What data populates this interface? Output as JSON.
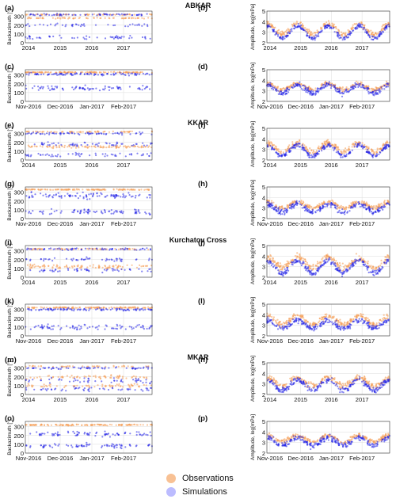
{
  "sections": [
    "ABKAR",
    "KKAR",
    "Kurchatov Cross",
    "MKAR"
  ],
  "panel_labels": [
    "(a)",
    "(b)",
    "(c)",
    "(d)",
    "(e)",
    "(f)",
    "(g)",
    "(h)",
    "(i)",
    "(j)",
    "(k)",
    "(l)",
    "(m)",
    "(n)",
    "(o)",
    "(p)"
  ],
  "legend": {
    "observations": "Observations",
    "simulations": "Simulations",
    "observations_color": "#f5a766",
    "simulations_color": "#6b6bff"
  },
  "colors": {
    "obs": "#f5a05a",
    "sim": "#2020e6",
    "grid": "#dddddd"
  },
  "chart_data": [
    {
      "type": "scatter",
      "panel": "(a)",
      "station": "ABKAR",
      "ylabel": "Backazimuth [°]",
      "xticks": [
        "2014",
        "2015",
        "2016",
        "2017"
      ],
      "yticks": [
        0,
        100,
        200,
        300
      ],
      "ylim": [
        0,
        360
      ],
      "series": [
        {
          "name": "Observations",
          "values": [
            {
              "level": 320,
              "spread": 10
            },
            {
              "level": 280,
              "spread": 8
            }
          ]
        },
        {
          "name": "Simulations",
          "values": [
            {
              "level": 320,
              "spread": 15
            },
            {
              "level": 200,
              "spread": 25
            },
            {
              "level": 60,
              "spread": 30
            }
          ]
        }
      ]
    },
    {
      "type": "scatter",
      "panel": "(b)",
      "station": "ABKAR",
      "ylabel": "Amplitude, log[mPa]",
      "xticks": [
        "2014",
        "2015",
        "2016",
        "2017"
      ],
      "yticks": [
        2,
        3,
        4,
        5
      ],
      "ylim": [
        2,
        5
      ],
      "series": [
        {
          "name": "Observations",
          "values": [
            {
              "mean": 3.3,
              "amp": 0.5,
              "spread": 0.4
            }
          ]
        },
        {
          "name": "Simulations",
          "values": [
            {
              "mean": 3.0,
              "amp": 0.6,
              "spread": 0.3
            }
          ]
        }
      ]
    },
    {
      "type": "scatter",
      "panel": "(c)",
      "station": "ABKAR",
      "ylabel": "Backazimuth [°]",
      "xticks": [
        "Nov-2016",
        "Dec-2016",
        "Jan-2017",
        "Feb-2017"
      ],
      "yticks": [
        0,
        100,
        200,
        300
      ],
      "ylim": [
        0,
        360
      ],
      "series": [
        {
          "name": "Observations",
          "values": [
            {
              "level": 330,
              "spread": 8
            }
          ]
        },
        {
          "name": "Simulations",
          "values": [
            {
              "level": 310,
              "spread": 20
            },
            {
              "level": 150,
              "spread": 40
            }
          ]
        }
      ]
    },
    {
      "type": "scatter",
      "panel": "(d)",
      "station": "ABKAR",
      "ylabel": "Amplitude, log[mPa]",
      "xticks": [
        "Nov-2016",
        "Dec-2016",
        "Jan-2017",
        "Feb-2017"
      ],
      "yticks": [
        2,
        3,
        4,
        5
      ],
      "ylim": [
        2,
        5
      ],
      "series": [
        {
          "name": "Observations",
          "values": [
            {
              "mean": 3.4,
              "amp": 0.3,
              "spread": 0.3
            }
          ]
        },
        {
          "name": "Simulations",
          "values": [
            {
              "mean": 3.2,
              "amp": 0.4,
              "spread": 0.4
            }
          ]
        }
      ]
    },
    {
      "type": "scatter",
      "panel": "(e)",
      "station": "KKAR",
      "ylabel": "Backazimuth [°]",
      "xticks": [
        "2014",
        "2015",
        "2016",
        "2017"
      ],
      "yticks": [
        0,
        100,
        200,
        300
      ],
      "ylim": [
        0,
        360
      ],
      "series": [
        {
          "name": "Observations",
          "values": [
            {
              "level": 320,
              "spread": 10
            },
            {
              "level": 150,
              "spread": 20
            }
          ]
        },
        {
          "name": "Simulations",
          "values": [
            {
              "level": 300,
              "spread": 20
            },
            {
              "level": 180,
              "spread": 30
            },
            {
              "level": 60,
              "spread": 30
            }
          ]
        }
      ]
    },
    {
      "type": "scatter",
      "panel": "(f)",
      "station": "KKAR",
      "ylabel": "Amplitude, log[mPa]",
      "xticks": [
        "2014",
        "2015",
        "2016",
        "2017"
      ],
      "yticks": [
        2,
        3,
        4,
        5
      ],
      "ylim": [
        2,
        5
      ],
      "series": [
        {
          "name": "Observations",
          "values": [
            {
              "mean": 3.2,
              "amp": 0.4,
              "spread": 0.4
            }
          ]
        },
        {
          "name": "Simulations",
          "values": [
            {
              "mean": 2.9,
              "amp": 0.5,
              "spread": 0.3
            }
          ]
        }
      ]
    },
    {
      "type": "scatter",
      "panel": "(g)",
      "station": "KKAR",
      "ylabel": "Backazimuth [°]",
      "xticks": [
        "Nov-2016",
        "Dec-2016",
        "Jan-2017",
        "Feb-2017"
      ],
      "yticks": [
        0,
        100,
        200,
        300
      ],
      "ylim": [
        0,
        360
      ],
      "series": [
        {
          "name": "Observations",
          "values": [
            {
              "level": 330,
              "spread": 8
            }
          ]
        },
        {
          "name": "Simulations",
          "values": [
            {
              "level": 260,
              "spread": 50
            },
            {
              "level": 80,
              "spread": 40
            }
          ]
        }
      ]
    },
    {
      "type": "scatter",
      "panel": "(h)",
      "station": "KKAR",
      "ylabel": "Amplitude, log[mPa]",
      "xticks": [
        "Nov-2016",
        "Dec-2016",
        "Jan-2017",
        "Feb-2017"
      ],
      "yticks": [
        2,
        3,
        4,
        5
      ],
      "ylim": [
        2,
        5
      ],
      "series": [
        {
          "name": "Observations",
          "values": [
            {
              "mean": 3.3,
              "amp": 0.3,
              "spread": 0.3
            }
          ]
        },
        {
          "name": "Simulations",
          "values": [
            {
              "mean": 3.0,
              "amp": 0.4,
              "spread": 0.4
            }
          ]
        }
      ]
    },
    {
      "type": "scatter",
      "panel": "(i)",
      "station": "Kurchatov Cross",
      "ylabel": "Backazimuth [°]",
      "xticks": [
        "2014",
        "2015",
        "2016",
        "2017"
      ],
      "yticks": [
        0,
        100,
        200,
        300
      ],
      "ylim": [
        0,
        360
      ],
      "series": [
        {
          "name": "Observations",
          "values": [
            {
              "level": 320,
              "spread": 10
            },
            {
              "level": 120,
              "spread": 40
            }
          ]
        },
        {
          "name": "Simulations",
          "values": [
            {
              "level": 320,
              "spread": 15
            },
            {
              "level": 200,
              "spread": 30
            },
            {
              "level": 80,
              "spread": 30
            }
          ]
        }
      ]
    },
    {
      "type": "scatter",
      "panel": "(j)",
      "station": "Kurchatov Cross",
      "ylabel": "Amplitude, log[mPa]",
      "xticks": [
        "2014",
        "2015",
        "2016",
        "2017"
      ],
      "yticks": [
        2,
        3,
        4,
        5
      ],
      "ylim": [
        2,
        5
      ],
      "series": [
        {
          "name": "Observations",
          "values": [
            {
              "mean": 3.4,
              "amp": 0.5,
              "spread": 0.5
            }
          ]
        },
        {
          "name": "Simulations",
          "values": [
            {
              "mean": 3.0,
              "amp": 0.6,
              "spread": 0.4
            }
          ]
        }
      ]
    },
    {
      "type": "scatter",
      "panel": "(k)",
      "station": "Kurchatov Cross",
      "ylabel": "Backazimuth [°]",
      "xticks": [
        "Nov-2016",
        "Dec-2016",
        "Jan-2017",
        "Feb-2017"
      ],
      "yticks": [
        0,
        100,
        200,
        300
      ],
      "ylim": [
        0,
        360
      ],
      "series": [
        {
          "name": "Observations",
          "values": [
            {
              "level": 320,
              "spread": 10
            }
          ]
        },
        {
          "name": "Simulations",
          "values": [
            {
              "level": 100,
              "spread": 40
            },
            {
              "level": 300,
              "spread": 20
            }
          ]
        }
      ]
    },
    {
      "type": "scatter",
      "panel": "(l)",
      "station": "Kurchatov Cross",
      "ylabel": "Amplitude, log[mPa]",
      "xticks": [
        "Nov-2016",
        "Dec-2016",
        "Jan-2017",
        "Feb-2017"
      ],
      "yticks": [
        2,
        3,
        4,
        5
      ],
      "ylim": [
        2,
        5
      ],
      "series": [
        {
          "name": "Observations",
          "values": [
            {
              "mean": 3.5,
              "amp": 0.4,
              "spread": 0.4
            }
          ]
        },
        {
          "name": "Simulations",
          "values": [
            {
              "mean": 3.1,
              "amp": 0.4,
              "spread": 0.4
            }
          ]
        }
      ]
    },
    {
      "type": "scatter",
      "panel": "(m)",
      "station": "MKAR",
      "ylabel": "Backazimuth [°]",
      "xticks": [
        "2014",
        "2015",
        "2016",
        "2017"
      ],
      "yticks": [
        0,
        100,
        200,
        300
      ],
      "ylim": [
        0,
        360
      ],
      "series": [
        {
          "name": "Observations",
          "values": [
            {
              "level": 320,
              "spread": 10
            },
            {
              "level": 200,
              "spread": 30
            },
            {
              "level": 100,
              "spread": 30
            }
          ]
        },
        {
          "name": "Simulations",
          "values": [
            {
              "level": 300,
              "spread": 20
            },
            {
              "level": 160,
              "spread": 40
            },
            {
              "level": 60,
              "spread": 30
            }
          ]
        }
      ]
    },
    {
      "type": "scatter",
      "panel": "(n)",
      "station": "MKAR",
      "ylabel": "Amplitude, log[mPa]",
      "xticks": [
        "2014",
        "2015",
        "2016",
        "2017"
      ],
      "yticks": [
        2,
        3,
        4,
        5
      ],
      "ylim": [
        2,
        5
      ],
      "series": [
        {
          "name": "Observations",
          "values": [
            {
              "mean": 3.2,
              "amp": 0.4,
              "spread": 0.4
            }
          ]
        },
        {
          "name": "Simulations",
          "values": [
            {
              "mean": 2.9,
              "amp": 0.5,
              "spread": 0.4
            }
          ]
        }
      ]
    },
    {
      "type": "scatter",
      "panel": "(o)",
      "station": "MKAR",
      "ylabel": "Backazimuth [°]",
      "xticks": [
        "Nov-2016",
        "Dec-2016",
        "Jan-2017",
        "Feb-2017"
      ],
      "yticks": [
        0,
        100,
        200,
        300
      ],
      "ylim": [
        0,
        360
      ],
      "series": [
        {
          "name": "Observations",
          "values": [
            {
              "level": 320,
              "spread": 10
            }
          ]
        },
        {
          "name": "Simulations",
          "values": [
            {
              "level": 80,
              "spread": 40
            },
            {
              "level": 220,
              "spread": 40
            }
          ]
        }
      ]
    },
    {
      "type": "scatter",
      "panel": "(p)",
      "station": "MKAR",
      "ylabel": "Amplitude, log[mPa]",
      "xticks": [
        "Nov-2016",
        "Dec-2016",
        "Jan-2017",
        "Feb-2017"
      ],
      "yticks": [
        2,
        3,
        4,
        5
      ],
      "ylim": [
        2,
        5
      ],
      "series": [
        {
          "name": "Observations",
          "values": [
            {
              "mean": 3.4,
              "amp": 0.3,
              "spread": 0.3
            }
          ]
        },
        {
          "name": "Simulations",
          "values": [
            {
              "mean": 3.1,
              "amp": 0.4,
              "spread": 0.4
            }
          ]
        }
      ]
    }
  ]
}
